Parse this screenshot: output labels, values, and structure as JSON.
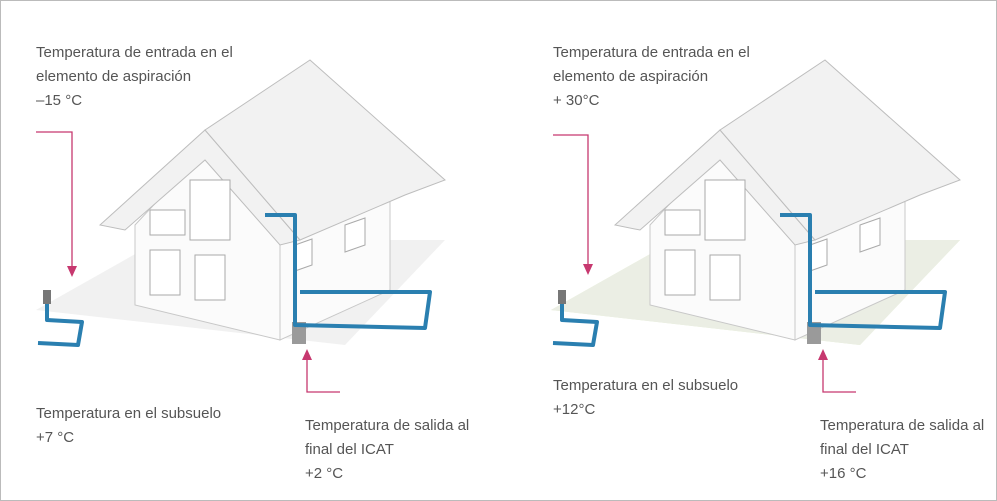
{
  "panels": [
    {
      "inlet": {
        "lines": [
          "Temperatura de entrada en el",
          "elemento de aspiración",
          "–15 °C"
        ]
      },
      "subsoil": {
        "lines": [
          "Temperatura en el subsuelo",
          "+7 °C"
        ]
      },
      "outlet": {
        "lines": [
          "Temperatura de salida al",
          "final del ICAT",
          "+2 °C"
        ]
      }
    },
    {
      "inlet": {
        "lines": [
          "Temperatura de entrada en el",
          "elemento de aspiración",
          "+ 30°C"
        ]
      },
      "subsoil": {
        "lines": [
          "Temperatura en el subsuelo",
          "+12°C"
        ]
      },
      "outlet": {
        "lines": [
          "Temperatura de salida al",
          "final del ICAT",
          "+16 °C"
        ]
      }
    }
  ]
}
